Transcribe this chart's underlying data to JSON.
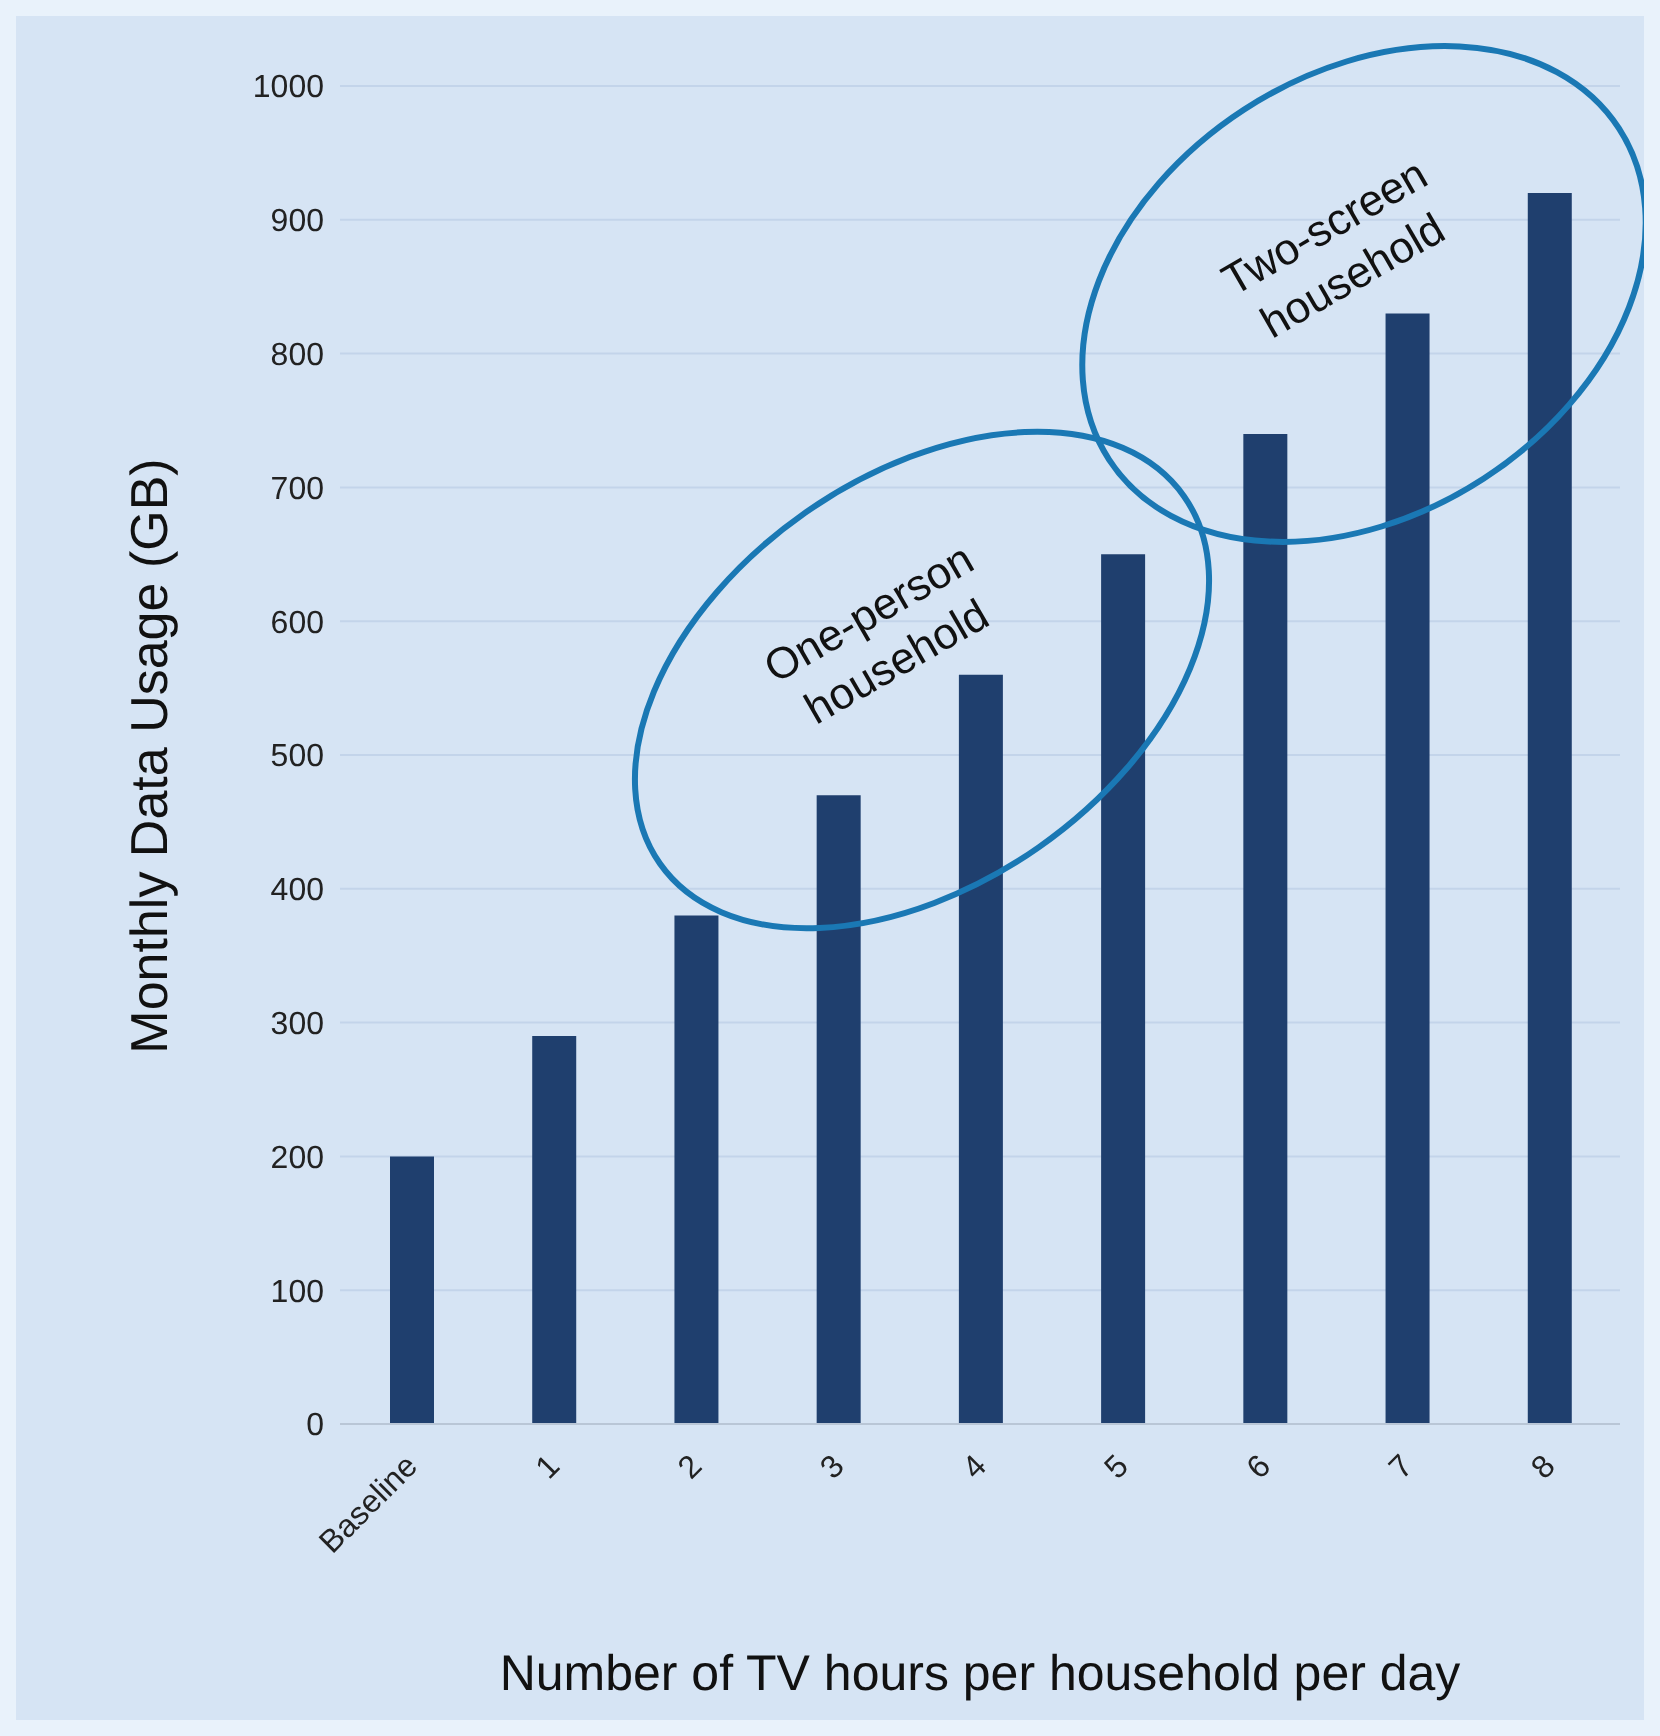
{
  "chart_data": {
    "type": "bar",
    "xlabel": "Number of TV hours per household per day",
    "ylabel": "Monthly Data Usage (GB)",
    "categories": [
      "Baseline",
      "1",
      "2",
      "3",
      "4",
      "5",
      "6",
      "7",
      "8"
    ],
    "values": [
      200,
      290,
      380,
      470,
      560,
      650,
      740,
      830,
      920
    ],
    "color": "#1f3f6e",
    "ylim": [
      0,
      1000
    ],
    "yticks": [
      0,
      100,
      200,
      300,
      400,
      500,
      600,
      700,
      800,
      900,
      1000
    ],
    "grid": "y",
    "annotations": [
      "One-person household",
      "Two-screen household"
    ]
  }
}
